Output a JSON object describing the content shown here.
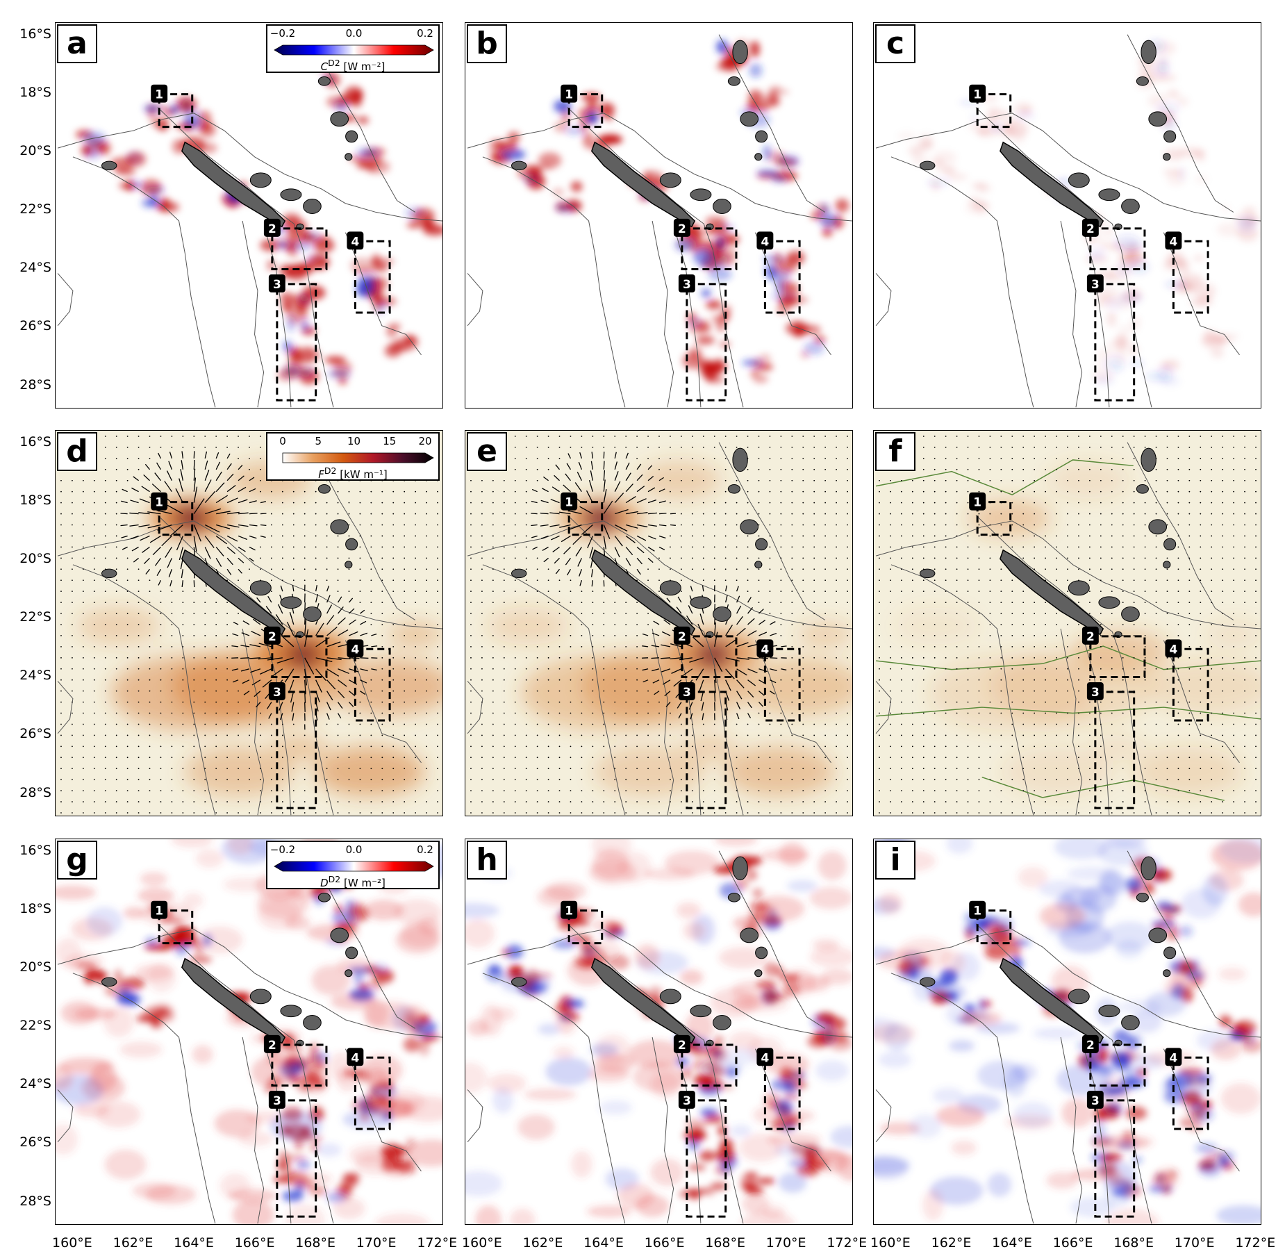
{
  "panels": [
    {
      "letter": "a",
      "style": "C",
      "colorbar": {
        "ticks": [
          "−0.2",
          "0.0",
          "0.2"
        ],
        "label": "C",
        "sup": "D2",
        "unit": "[W m⁻²]",
        "colors": [
          "#00004a",
          "#0000ff",
          "#ffffff",
          "#ff0000",
          "#6a0000"
        ]
      }
    },
    {
      "letter": "b",
      "style": "C"
    },
    {
      "letter": "c",
      "style": "Cw"
    },
    {
      "letter": "d",
      "style": "F",
      "colorbar": {
        "ticks": [
          "0",
          "5",
          "10",
          "15",
          "20"
        ],
        "label": "F",
        "sup": "D2",
        "unit": "[kW m⁻¹]",
        "colors": [
          "#ffffff",
          "#e8a060",
          "#d35a10",
          "#b01828",
          "#4a0e2a",
          "#000000"
        ]
      }
    },
    {
      "letter": "e",
      "style": "Fe"
    },
    {
      "letter": "f",
      "style": "Ff"
    },
    {
      "letter": "g",
      "style": "D",
      "colorbar": {
        "ticks": [
          "−0.2",
          "0.0",
          "0.2"
        ],
        "label": "D",
        "sup": "D2",
        "unit": "[W m⁻²]",
        "colors": [
          "#00004a",
          "#0000ff",
          "#ffffff",
          "#ff0000",
          "#6a0000"
        ]
      }
    },
    {
      "letter": "h",
      "style": "D"
    },
    {
      "letter": "i",
      "style": "Di"
    }
  ],
  "boxes": [
    {
      "label": "1"
    },
    {
      "label": "2"
    },
    {
      "label": "3"
    },
    {
      "label": "4"
    }
  ],
  "lat_ticks": [
    "16°S",
    "18°S",
    "20°S",
    "22°S",
    "24°S",
    "26°S",
    "28°S"
  ],
  "lon_ticks": [
    "160°E",
    "162°E",
    "164°E",
    "166°E",
    "168°E",
    "170°E",
    "172°E"
  ],
  "colors": {
    "land": "#606060",
    "positive": "#c00000",
    "negative": "#2030d0",
    "flux": "#d87a30",
    "flux_bg": "#f4efdc",
    "contour_f": "#5a8a3a"
  }
}
